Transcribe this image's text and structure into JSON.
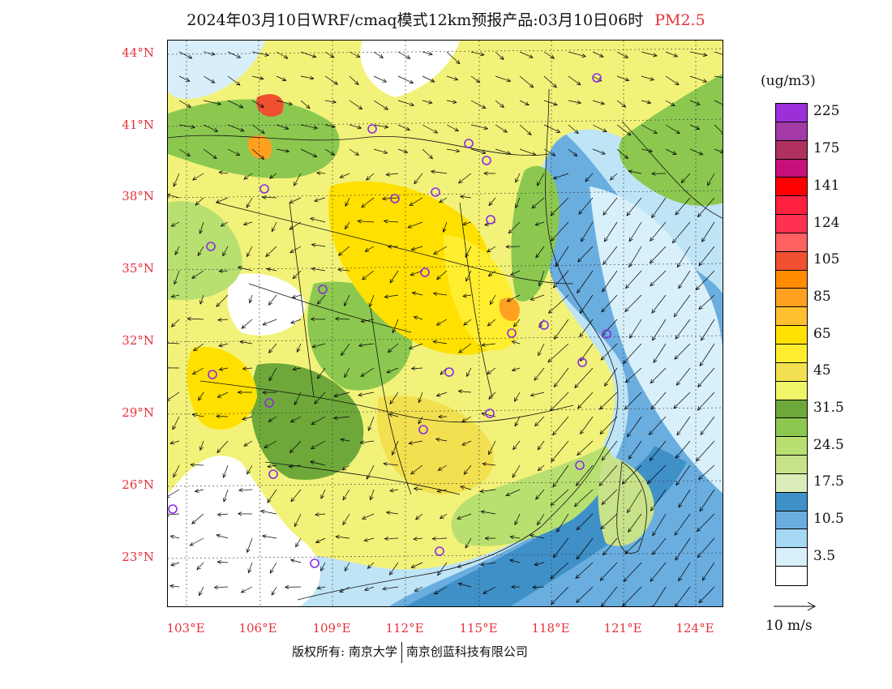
{
  "title": {
    "text": "2024年03月10日WRF/cmaq模式12km预报产品:03月10日06时",
    "species": "PM2.5",
    "species_color": "#e8323c"
  },
  "map": {
    "lat_labels": [
      "44°N",
      "41°N",
      "38°N",
      "35°N",
      "32°N",
      "29°N",
      "26°N",
      "23°N"
    ],
    "lon_labels": [
      "103°E",
      "106°E",
      "109°E",
      "112°E",
      "115°E",
      "118°E",
      "121°E",
      "124°E"
    ],
    "city_marker_color": "#8a2be2",
    "land_colors": {
      "yellow": "#f5e040",
      "light_yellow": "#f2f27a",
      "green": "#8cc850",
      "dark_green": "#6ea83a",
      "pale_green": "#c8e078",
      "orange": "#f0a020",
      "blue": "#5aa0d8",
      "light_blue": "#a8d8f0",
      "pale_blue": "#d8eefa"
    }
  },
  "legend": {
    "units": "(ug/m3)",
    "bins": [
      {
        "label": "225",
        "color": "#9b30d8"
      },
      {
        "label": "",
        "color": "#a33aa8"
      },
      {
        "label": "175",
        "color": "#b03060"
      },
      {
        "label": "",
        "color": "#c8107a"
      },
      {
        "label": "141",
        "color": "#ff0000"
      },
      {
        "label": "",
        "color": "#ff2040"
      },
      {
        "label": "124",
        "color": "#ff3050"
      },
      {
        "label": "",
        "color": "#ff6060"
      },
      {
        "label": "105",
        "color": "#f05030"
      },
      {
        "label": "",
        "color": "#ff8c00"
      },
      {
        "label": "85",
        "color": "#ffa020"
      },
      {
        "label": "",
        "color": "#ffc030"
      },
      {
        "label": "65",
        "color": "#ffe000"
      },
      {
        "label": "",
        "color": "#ffee30"
      },
      {
        "label": "45",
        "color": "#f2e050"
      },
      {
        "label": "",
        "color": "#eef568"
      },
      {
        "label": "31.5",
        "color": "#6ea83a"
      },
      {
        "label": "",
        "color": "#8cc850"
      },
      {
        "label": "24.5",
        "color": "#b8e070"
      },
      {
        "label": "",
        "color": "#c8e28a"
      },
      {
        "label": "17.5",
        "color": "#dcecb8"
      },
      {
        "label": "",
        "color": "#4090c8"
      },
      {
        "label": "10.5",
        "color": "#6aaee0"
      },
      {
        "label": "",
        "color": "#a4d8f4"
      },
      {
        "label": "3.5",
        "color": "#d8f0fa"
      },
      {
        "label": "",
        "color": "#ffffff"
      }
    ]
  },
  "wind_reference": {
    "label": "10 m/s"
  },
  "footer": {
    "left": "版权所有: 南京大学",
    "right": "南京创蓝科技有限公司"
  }
}
